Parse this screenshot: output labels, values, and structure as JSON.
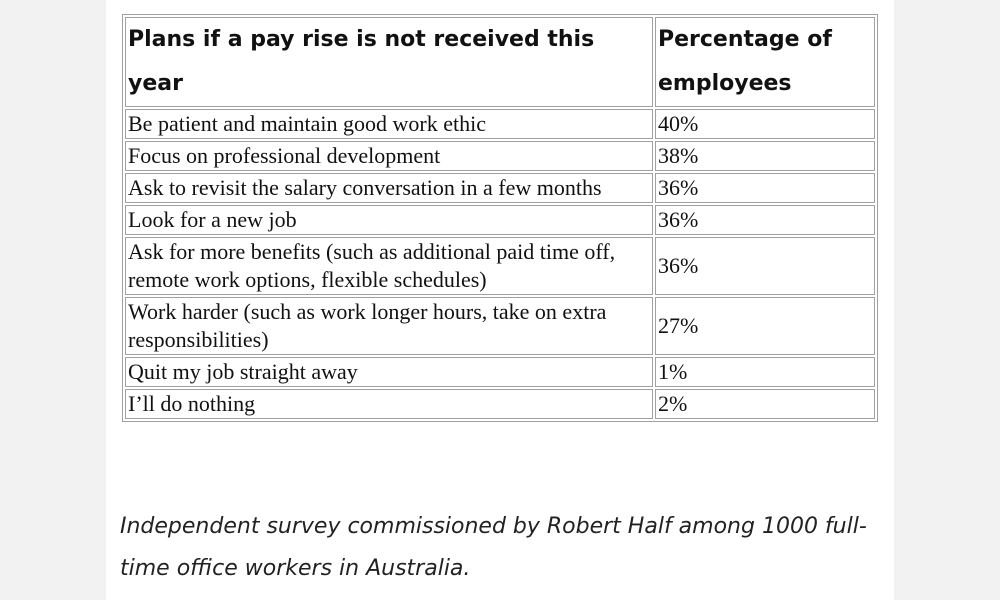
{
  "table": {
    "headers": {
      "plan": "Plans if a pay rise is not received this year",
      "percentage": "Percentage of employees"
    },
    "rows": [
      {
        "plan": "Be patient and maintain good work ethic",
        "percentage": "40%"
      },
      {
        "plan": "Focus on professional development",
        "percentage": "38%"
      },
      {
        "plan": "Ask to revisit the salary conversation in a few months",
        "percentage": "36%"
      },
      {
        "plan": "Look for a new job",
        "percentage": "36%"
      },
      {
        "plan": "Ask for more benefits (such as additional paid time off, remote work options, flexible schedules)",
        "percentage": "36%"
      },
      {
        "plan": "Work harder (such as work longer hours, take on extra responsibilities)",
        "percentage": "27%"
      },
      {
        "plan": "Quit my job straight away",
        "percentage": "1%"
      },
      {
        "plan": "I’ll do nothing",
        "percentage": "2%"
      }
    ]
  },
  "caption": "Independent survey commissioned by Robert Half among 1000 full-time office workers in Australia."
}
